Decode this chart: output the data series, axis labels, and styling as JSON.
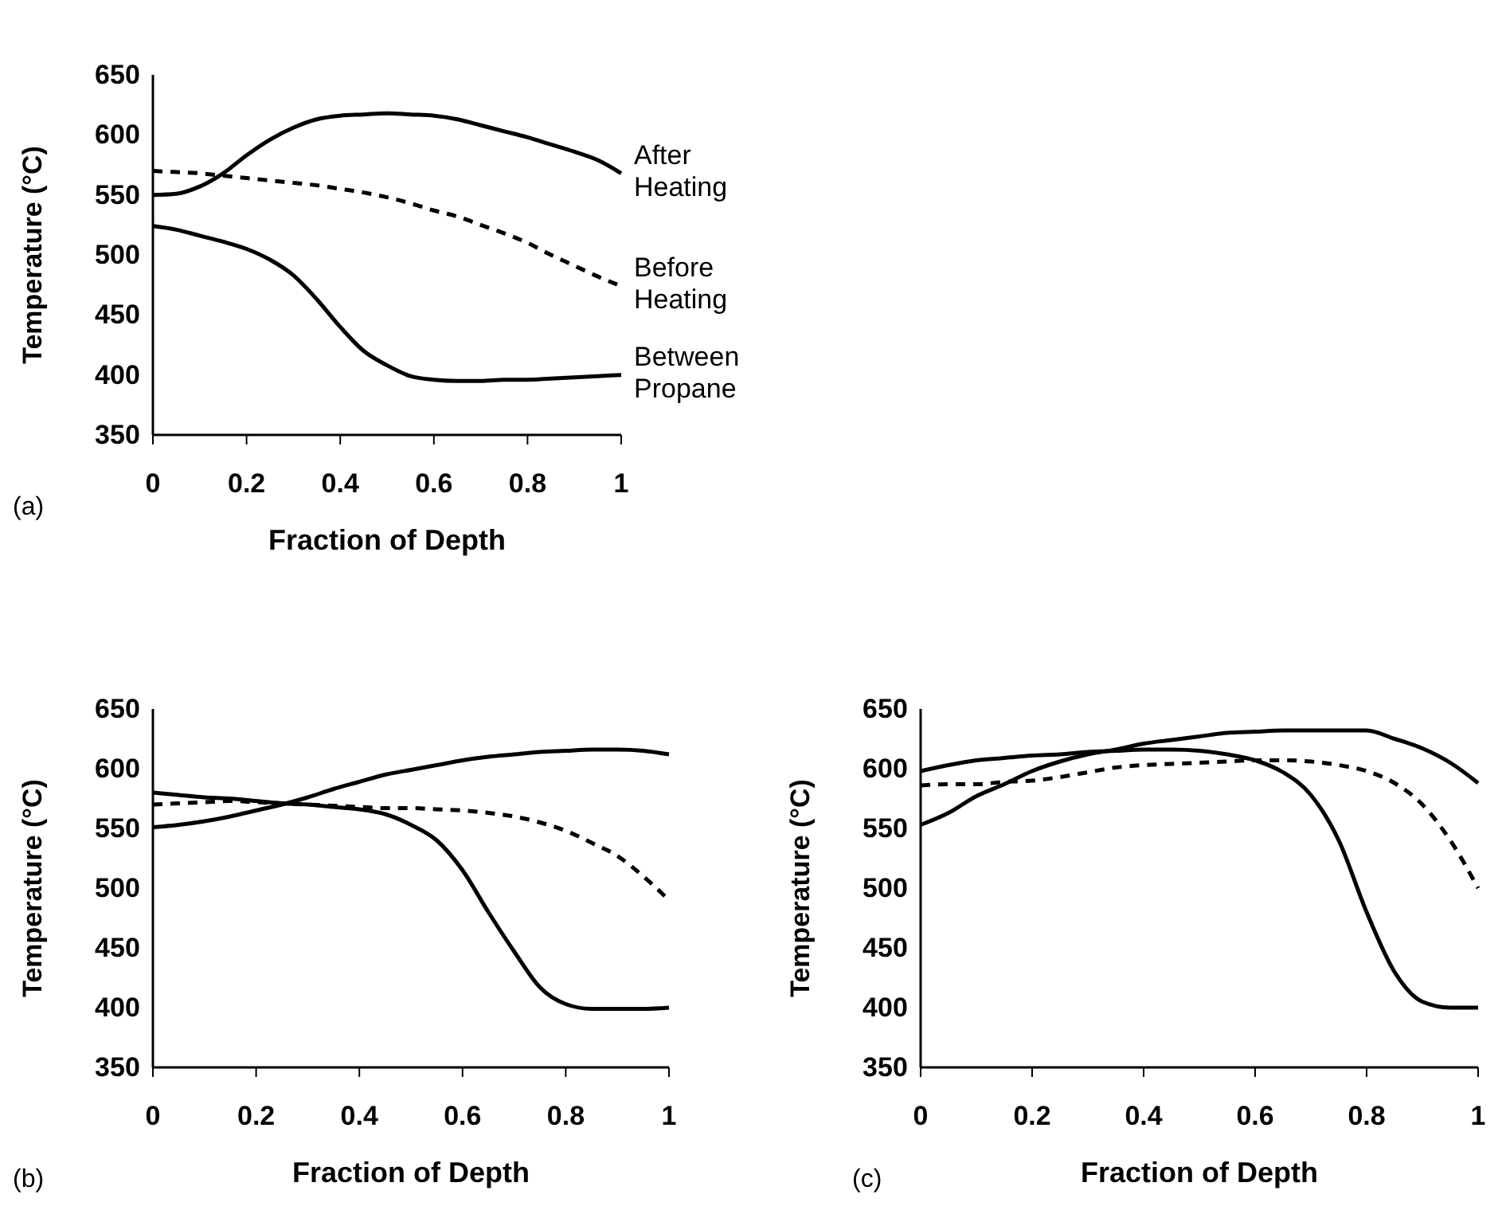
{
  "chart_data": [
    {
      "type": "line",
      "xlabel": "Fraction of Depth",
      "ylabel": "Temperature (°C)",
      "annotations": [
        "(a)"
      ],
      "xlim": [
        0,
        1
      ],
      "xticks": [
        0,
        0.2,
        0.4,
        0.6,
        0.8,
        1
      ],
      "ylim": [
        350,
        650
      ],
      "yticks": [
        350,
        400,
        450,
        500,
        550,
        600,
        650
      ],
      "x": [
        0,
        0.05,
        0.1,
        0.15,
        0.2,
        0.25,
        0.3,
        0.35,
        0.4,
        0.45,
        0.5,
        0.55,
        0.6,
        0.65,
        0.7,
        0.75,
        0.8,
        0.85,
        0.9,
        0.95,
        1
      ],
      "series": [
        {
          "name": "After Heating",
          "color": "#000000",
          "line_style": "solid",
          "values": [
            550,
            551,
            557,
            568,
            583,
            596,
            606,
            613,
            616,
            617,
            618,
            617,
            616,
            613,
            608,
            603,
            598,
            592,
            586,
            579,
            568
          ]
        },
        {
          "name": "Before Heating",
          "color": "#000000",
          "line_style": "dashed",
          "values": [
            570,
            569,
            568,
            566,
            564,
            562,
            560,
            558,
            555,
            552,
            548,
            543,
            537,
            532,
            525,
            518,
            510,
            500,
            491,
            482,
            474
          ]
        },
        {
          "name": "Between Propane",
          "color": "#000000",
          "line_style": "solid",
          "values": [
            524,
            521,
            516,
            511,
            505,
            496,
            483,
            463,
            440,
            420,
            408,
            399,
            396,
            395,
            395,
            396,
            396,
            397,
            398,
            399,
            400
          ]
        }
      ]
    },
    {
      "type": "line",
      "xlabel": "Fraction of Depth",
      "ylabel": "Temperature (°C)",
      "annotations": [
        "(b)"
      ],
      "xlim": [
        0,
        1
      ],
      "xticks": [
        0,
        0.2,
        0.4,
        0.6,
        0.8,
        1
      ],
      "ylim": [
        350,
        650
      ],
      "yticks": [
        350,
        400,
        450,
        500,
        550,
        600,
        650
      ],
      "x": [
        0,
        0.05,
        0.1,
        0.15,
        0.2,
        0.25,
        0.3,
        0.35,
        0.4,
        0.45,
        0.5,
        0.55,
        0.6,
        0.65,
        0.7,
        0.75,
        0.8,
        0.85,
        0.9,
        0.95,
        1
      ],
      "series": [
        {
          "color": "#000000",
          "line_style": "solid",
          "values": [
            551,
            553,
            556,
            560,
            565,
            570,
            576,
            583,
            589,
            595,
            599,
            603,
            607,
            610,
            612,
            614,
            615,
            616,
            616,
            615,
            612
          ]
        },
        {
          "color": "#000000",
          "line_style": "dashed",
          "values": [
            570,
            571,
            572,
            573,
            572,
            571,
            570,
            569,
            568,
            567,
            567,
            566,
            565,
            563,
            560,
            555,
            548,
            538,
            527,
            510,
            490
          ]
        },
        {
          "color": "#000000",
          "line_style": "solid",
          "values": [
            580,
            578,
            576,
            575,
            573,
            571,
            570,
            568,
            566,
            562,
            553,
            540,
            515,
            480,
            447,
            417,
            403,
            399,
            399,
            399,
            400
          ]
        }
      ]
    },
    {
      "type": "line",
      "xlabel": "Fraction of Depth",
      "ylabel": "Temperature (°C)",
      "annotations": [
        "(c)"
      ],
      "xlim": [
        0,
        1
      ],
      "xticks": [
        0,
        0.2,
        0.4,
        0.6,
        0.8,
        1
      ],
      "ylim": [
        350,
        650
      ],
      "yticks": [
        350,
        400,
        450,
        500,
        550,
        600,
        650
      ],
      "x": [
        0,
        0.05,
        0.1,
        0.15,
        0.2,
        0.25,
        0.3,
        0.35,
        0.4,
        0.45,
        0.5,
        0.55,
        0.6,
        0.65,
        0.7,
        0.75,
        0.8,
        0.85,
        0.9,
        0.95,
        1
      ],
      "series": [
        {
          "color": "#000000",
          "line_style": "solid",
          "values": [
            553,
            563,
            577,
            587,
            598,
            606,
            612,
            616,
            621,
            624,
            627,
            630,
            631,
            632,
            632,
            632,
            632,
            625,
            617,
            605,
            588
          ]
        },
        {
          "color": "#000000",
          "line_style": "dashed",
          "values": [
            586,
            587,
            587,
            589,
            590,
            593,
            597,
            601,
            603,
            604,
            605,
            606,
            607,
            607,
            606,
            603,
            598,
            588,
            570,
            540,
            500
          ]
        },
        {
          "color": "#000000",
          "line_style": "solid",
          "values": [
            598,
            603,
            607,
            609,
            611,
            612,
            614,
            615,
            616,
            616,
            615,
            612,
            607,
            597,
            578,
            540,
            480,
            430,
            405,
            400,
            400
          ]
        }
      ]
    }
  ]
}
